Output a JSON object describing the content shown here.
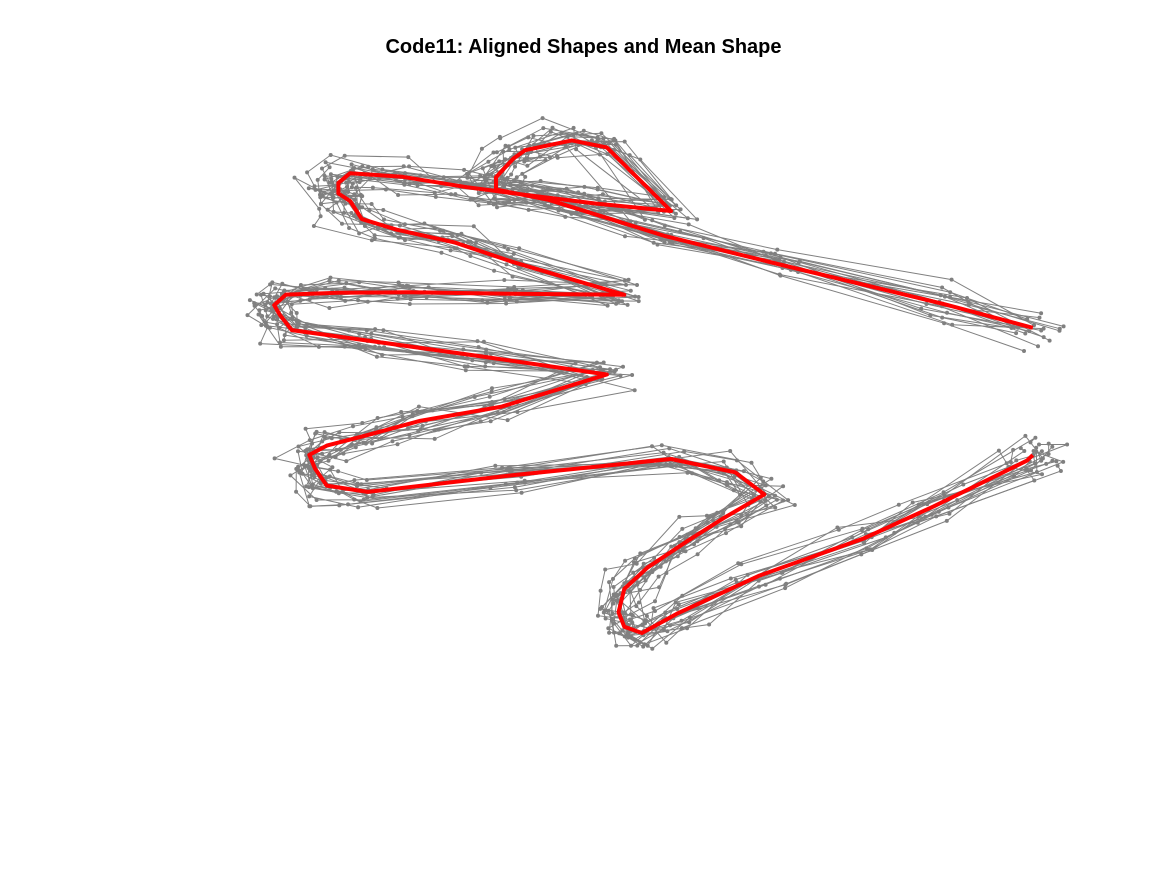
{
  "chart_data": {
    "type": "line",
    "title": "Code11: Aligned Shapes and Mean Shape",
    "xlabel": "",
    "ylabel": "",
    "axis_visible": false,
    "grid": false,
    "xlim": [
      0,
      1
    ],
    "ylim": [
      0,
      1
    ],
    "colors": {
      "aligned": "#808080",
      "mean": "#ff0000"
    },
    "mean_shape": {
      "x": [
        0.885,
        0.81,
        0.67,
        0.57,
        0.47,
        0.425,
        0.425,
        0.44,
        0.45,
        0.49,
        0.52,
        0.575,
        0.51,
        0.45,
        0.4,
        0.345,
        0.3,
        0.29,
        0.29,
        0.3,
        0.31,
        0.34,
        0.39,
        0.44,
        0.535,
        0.44,
        0.35,
        0.29,
        0.245,
        0.235,
        0.24,
        0.25,
        0.32,
        0.41,
        0.52,
        0.43,
        0.36,
        0.31,
        0.28,
        0.265,
        0.27,
        0.28,
        0.315,
        0.44,
        0.575,
        0.63,
        0.655,
        0.62,
        0.59,
        0.555,
        0.535,
        0.53,
        0.535,
        0.55,
        0.58,
        0.65,
        0.74,
        0.8,
        0.88,
        0.885
      ],
      "y": [
        0.6545,
        0.6847,
        0.7355,
        0.7728,
        0.8196,
        0.8329,
        0.8486,
        0.8729,
        0.8836,
        0.8963,
        0.8872,
        0.8051,
        0.8148,
        0.8261,
        0.8359,
        0.8493,
        0.854,
        0.8414,
        0.8277,
        0.8181,
        0.7947,
        0.781,
        0.7644,
        0.7391,
        0.697,
        0.6983,
        0.7002,
        0.6998,
        0.6973,
        0.6837,
        0.6707,
        0.6515,
        0.6369,
        0.6181,
        0.5942,
        0.5528,
        0.5345,
        0.514,
        0.5025,
        0.4905,
        0.4726,
        0.4509,
        0.4427,
        0.4644,
        0.4852,
        0.468,
        0.4395,
        0.4088,
        0.3803,
        0.3453,
        0.3175,
        0.2874,
        0.2687,
        0.2607,
        0.2855,
        0.3343,
        0.3826,
        0.424,
        0.4831,
        0.4902
      ]
    },
    "aligned_shapes_count": 20
  }
}
